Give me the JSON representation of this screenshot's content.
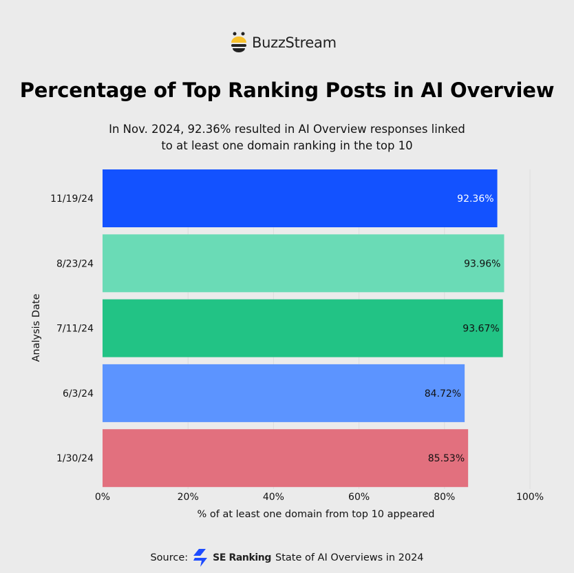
{
  "brand": {
    "name": "BuzzStream",
    "logo_icon": "bee-icon"
  },
  "chart_data": {
    "type": "bar",
    "orientation": "horizontal",
    "title": "Percentage of Top Ranking Posts in AI Overview",
    "subtitle": "In Nov. 2024, 92.36% resulted in AI Overview responses linked to at least one domain ranking in the top 10",
    "categories": [
      "11/19/24",
      "8/23/24",
      "7/11/24",
      "6/3/24",
      "1/30/24"
    ],
    "values": [
      92.36,
      93.96,
      93.67,
      84.72,
      85.53
    ],
    "data_labels": [
      "92.36%",
      "93.96%",
      "93.67%",
      "84.72%",
      "85.53%"
    ],
    "colors": [
      "#1352ff",
      "#6adbb6",
      "#22c385",
      "#5c94ff",
      "#e2707e"
    ],
    "label_colors": [
      "#ffffff",
      "#111111",
      "#111111",
      "#111111",
      "#111111"
    ],
    "xlabel": "% of at least one domain from top 10 appeared",
    "ylabel": "Analysis Date",
    "xlim": [
      0,
      100
    ],
    "xticks": [
      "0%",
      "20%",
      "40%",
      "60%",
      "80%",
      "100%"
    ],
    "grid": true
  },
  "source": {
    "prefix": "Source:",
    "brand": "SE Ranking",
    "text": "State of AI Overviews in 2024",
    "brand_icon": "se-ranking-icon"
  }
}
